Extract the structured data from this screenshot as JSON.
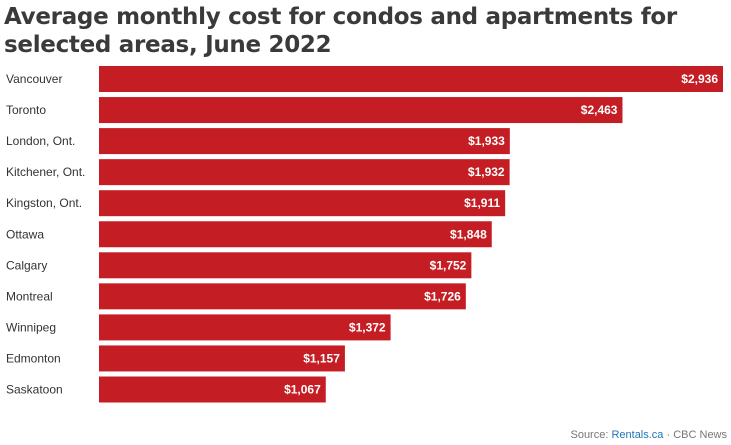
{
  "header": {
    "title": "Average monthly cost for condos and apartments for selected areas, June 2022"
  },
  "footer": {
    "source_prefix": "Source: ",
    "source_link": "Rentals.ca",
    "source_suffix": " · CBC News"
  },
  "colors": {
    "bar": "#c41e24",
    "bar_label": "#ffffff",
    "category_label": "#333333"
  },
  "chart_data": {
    "type": "bar",
    "orientation": "horizontal",
    "title": "Average monthly cost for condos and apartments for selected areas, June 2022",
    "categories": [
      "Vancouver",
      "Toronto",
      "London, Ont.",
      "Kitchener, Ont.",
      "Kingston, Ont.",
      "Ottawa",
      "Calgary",
      "Montreal",
      "Winnipeg",
      "Edmonton",
      "Saskatoon"
    ],
    "values": [
      2936,
      2463,
      1933,
      1932,
      1911,
      1848,
      1752,
      1726,
      1372,
      1157,
      1067
    ],
    "value_labels": [
      "$2,936",
      "$2,463",
      "$1,933",
      "$1,932",
      "$1,911",
      "$1,848",
      "$1,752",
      "$1,726",
      "$1,372",
      "$1,157",
      "$1,067"
    ],
    "xlim": [
      0,
      2936
    ],
    "grid": false,
    "legend": "none"
  }
}
